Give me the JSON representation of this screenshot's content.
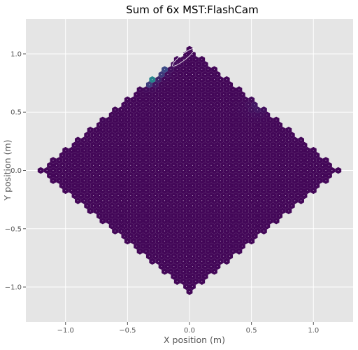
{
  "chart_data": {
    "type": "heatmap",
    "title": "Sum of 6x MST:FlashCam",
    "xlabel": "X position (m)",
    "ylabel": "Y position (m)",
    "xlim": [
      -1.32,
      1.32
    ],
    "ylim": [
      -1.3,
      1.3
    ],
    "xticks": [
      -1.0,
      -0.5,
      0.0,
      0.5,
      1.0
    ],
    "yticks": [
      -1.0,
      -0.5,
      0.0,
      0.5,
      1.0
    ],
    "xtick_labels": [
      "−1.0",
      "−0.5",
      "0.0",
      "0.5",
      "1.0"
    ],
    "ytick_labels": [
      "−1.0",
      "−0.5",
      "0.0",
      "0.5",
      "1.0"
    ],
    "grid": true,
    "camera": {
      "shape": "hexagon",
      "vertex_x": 1.2,
      "top_y": 1.05,
      "pixel_pitch": 0.05,
      "baseline_intensity": 0.02
    },
    "hotspots": [
      {
        "x": -0.29,
        "y": 0.86,
        "intensity": 1.0,
        "sigma": 0.028
      },
      {
        "x": -0.33,
        "y": 0.84,
        "intensity": 0.55,
        "sigma": 0.045
      },
      {
        "x": -0.26,
        "y": 0.89,
        "intensity": 0.5,
        "sigma": 0.04
      },
      {
        "x": -0.34,
        "y": 0.79,
        "intensity": 0.45,
        "sigma": 0.035
      },
      {
        "x": -0.24,
        "y": 0.95,
        "intensity": 0.3,
        "sigma": 0.05
      },
      {
        "x": -0.58,
        "y": 0.9,
        "intensity": 0.14,
        "sigma": 0.05
      },
      {
        "x": -0.78,
        "y": 0.55,
        "intensity": 0.08,
        "sigma": 0.05
      },
      {
        "x": 0.55,
        "y": 0.55,
        "intensity": 0.05,
        "sigma": 0.05
      }
    ],
    "ellipse": {
      "cx": -0.05,
      "cy": 0.97,
      "rx": 0.11,
      "ry": 0.025,
      "angle_deg": 38,
      "color": "#ffffff"
    },
    "colormap": "viridis",
    "colors": {
      "plot_background": "#e5e5e5",
      "grid": "#ffffff",
      "colormap_low": "#440154",
      "colormap_high": "#fde725"
    }
  }
}
